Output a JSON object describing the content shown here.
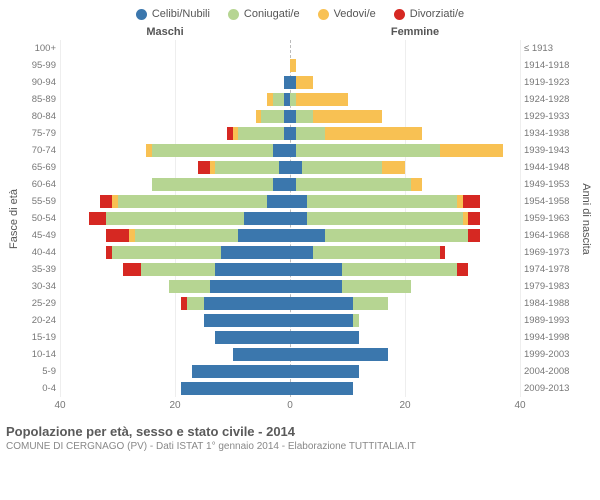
{
  "colors": {
    "celibi": "#3b77ad",
    "coniugati": "#b6d592",
    "vedovi": "#f8c153",
    "divorziati": "#d62822",
    "grid": "#eeeeee",
    "centerline": "#bbbbbb",
    "text": "#555555",
    "background": "#ffffff"
  },
  "legend": [
    {
      "label": "Celibi/Nubili",
      "color": "#3b77ad"
    },
    {
      "label": "Coniugati/e",
      "color": "#b6d592"
    },
    {
      "label": "Vedovi/e",
      "color": "#f8c153"
    },
    {
      "label": "Divorziati/e",
      "color": "#d62822"
    }
  ],
  "header": {
    "male": "Maschi",
    "female": "Femmine"
  },
  "yaxis": {
    "left_label": "Fasce di età",
    "right_label": "Anni di nascita"
  },
  "xaxis": {
    "max": 40,
    "ticks": [
      40,
      20,
      0,
      20,
      40
    ]
  },
  "footer": {
    "title": "Popolazione per età, sesso e stato civile - 2014",
    "subtitle": "COMUNE DI CERGNAGO (PV) - Dati ISTAT 1° gennaio 2014 - Elaborazione TUTTITALIA.IT"
  },
  "rows": [
    {
      "age": "100+",
      "birth": "≤ 1913",
      "m": {
        "c": 0,
        "co": 0,
        "v": 0,
        "d": 0
      },
      "f": {
        "c": 0,
        "co": 0,
        "v": 0,
        "d": 0
      }
    },
    {
      "age": "95-99",
      "birth": "1914-1918",
      "m": {
        "c": 0,
        "co": 0,
        "v": 0,
        "d": 0
      },
      "f": {
        "c": 0,
        "co": 0,
        "v": 1,
        "d": 0
      }
    },
    {
      "age": "90-94",
      "birth": "1919-1923",
      "m": {
        "c": 1,
        "co": 0,
        "v": 0,
        "d": 0
      },
      "f": {
        "c": 1,
        "co": 0,
        "v": 3,
        "d": 0
      }
    },
    {
      "age": "85-89",
      "birth": "1924-1928",
      "m": {
        "c": 1,
        "co": 2,
        "v": 1,
        "d": 0
      },
      "f": {
        "c": 0,
        "co": 1,
        "v": 9,
        "d": 0
      }
    },
    {
      "age": "80-84",
      "birth": "1929-1933",
      "m": {
        "c": 1,
        "co": 4,
        "v": 1,
        "d": 0
      },
      "f": {
        "c": 1,
        "co": 3,
        "v": 12,
        "d": 0
      }
    },
    {
      "age": "75-79",
      "birth": "1934-1938",
      "m": {
        "c": 1,
        "co": 8,
        "v": 1,
        "d": 1
      },
      "f": {
        "c": 1,
        "co": 5,
        "v": 17,
        "d": 0
      }
    },
    {
      "age": "70-74",
      "birth": "1939-1943",
      "m": {
        "c": 3,
        "co": 21,
        "v": 1,
        "d": 0
      },
      "f": {
        "c": 1,
        "co": 25,
        "v": 11,
        "d": 0
      }
    },
    {
      "age": "65-69",
      "birth": "1944-1948",
      "m": {
        "c": 2,
        "co": 11,
        "v": 1,
        "d": 2
      },
      "f": {
        "c": 2,
        "co": 14,
        "v": 4,
        "d": 0
      }
    },
    {
      "age": "60-64",
      "birth": "1949-1953",
      "m": {
        "c": 3,
        "co": 21,
        "v": 0,
        "d": 0
      },
      "f": {
        "c": 1,
        "co": 20,
        "v": 2,
        "d": 0
      }
    },
    {
      "age": "55-59",
      "birth": "1954-1958",
      "m": {
        "c": 4,
        "co": 26,
        "v": 1,
        "d": 2
      },
      "f": {
        "c": 3,
        "co": 26,
        "v": 1,
        "d": 3
      }
    },
    {
      "age": "50-54",
      "birth": "1959-1963",
      "m": {
        "c": 8,
        "co": 24,
        "v": 0,
        "d": 3
      },
      "f": {
        "c": 3,
        "co": 27,
        "v": 1,
        "d": 2
      }
    },
    {
      "age": "45-49",
      "birth": "1964-1968",
      "m": {
        "c": 9,
        "co": 18,
        "v": 1,
        "d": 4
      },
      "f": {
        "c": 6,
        "co": 25,
        "v": 0,
        "d": 2
      }
    },
    {
      "age": "40-44",
      "birth": "1969-1973",
      "m": {
        "c": 12,
        "co": 19,
        "v": 0,
        "d": 1
      },
      "f": {
        "c": 4,
        "co": 22,
        "v": 0,
        "d": 1
      }
    },
    {
      "age": "35-39",
      "birth": "1974-1978",
      "m": {
        "c": 13,
        "co": 13,
        "v": 0,
        "d": 3
      },
      "f": {
        "c": 9,
        "co": 20,
        "v": 0,
        "d": 2
      }
    },
    {
      "age": "30-34",
      "birth": "1979-1983",
      "m": {
        "c": 14,
        "co": 7,
        "v": 0,
        "d": 0
      },
      "f": {
        "c": 9,
        "co": 12,
        "v": 0,
        "d": 0
      }
    },
    {
      "age": "25-29",
      "birth": "1984-1988",
      "m": {
        "c": 15,
        "co": 3,
        "v": 0,
        "d": 1
      },
      "f": {
        "c": 11,
        "co": 6,
        "v": 0,
        "d": 0
      }
    },
    {
      "age": "20-24",
      "birth": "1989-1993",
      "m": {
        "c": 15,
        "co": 0,
        "v": 0,
        "d": 0
      },
      "f": {
        "c": 11,
        "co": 1,
        "v": 0,
        "d": 0
      }
    },
    {
      "age": "15-19",
      "birth": "1994-1998",
      "m": {
        "c": 13,
        "co": 0,
        "v": 0,
        "d": 0
      },
      "f": {
        "c": 12,
        "co": 0,
        "v": 0,
        "d": 0
      }
    },
    {
      "age": "10-14",
      "birth": "1999-2003",
      "m": {
        "c": 10,
        "co": 0,
        "v": 0,
        "d": 0
      },
      "f": {
        "c": 17,
        "co": 0,
        "v": 0,
        "d": 0
      }
    },
    {
      "age": "5-9",
      "birth": "2004-2008",
      "m": {
        "c": 17,
        "co": 0,
        "v": 0,
        "d": 0
      },
      "f": {
        "c": 12,
        "co": 0,
        "v": 0,
        "d": 0
      }
    },
    {
      "age": "0-4",
      "birth": "2009-2013",
      "m": {
        "c": 19,
        "co": 0,
        "v": 0,
        "d": 0
      },
      "f": {
        "c": 11,
        "co": 0,
        "v": 0,
        "d": 0
      }
    }
  ]
}
